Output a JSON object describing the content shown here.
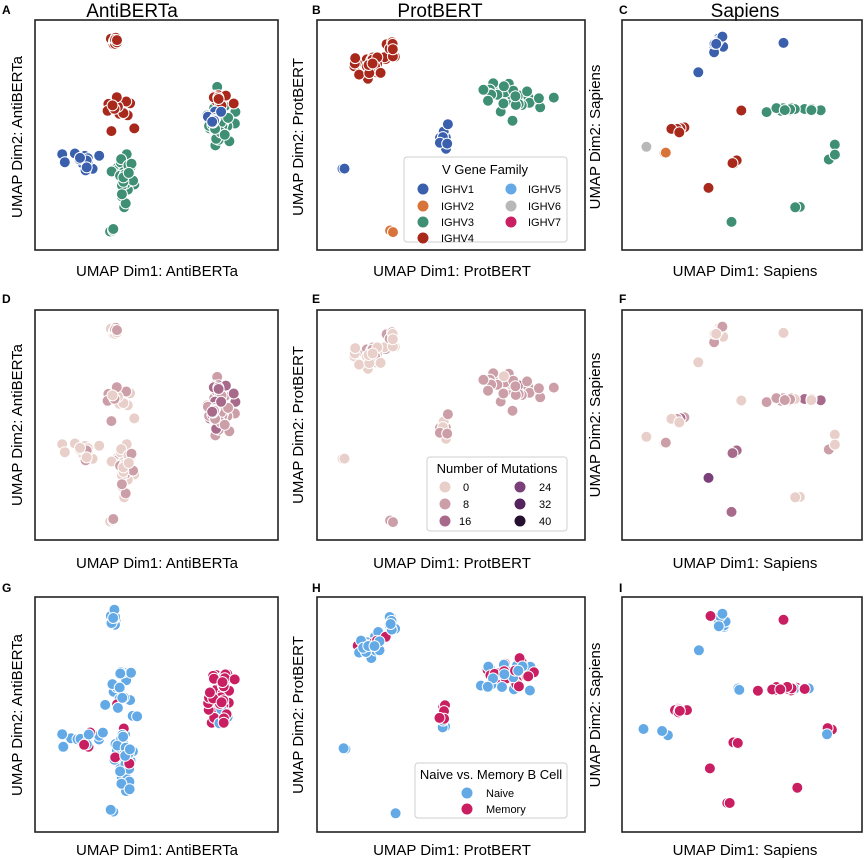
{
  "figure": {
    "columns": [
      "AntiBERTa",
      "ProtBERT",
      "Sapiens"
    ],
    "panel_letters": [
      "A",
      "B",
      "C",
      "D",
      "E",
      "F",
      "G",
      "H",
      "I"
    ]
  },
  "axes": {
    "AntiBERTa": {
      "xlabel": "UMAP Dim1: AntiBERTa",
      "ylabel": "UMAP Dim2: AntiBERTa"
    },
    "ProtBERT": {
      "xlabel": "UMAP Dim1: ProtBERT",
      "ylabel": "UMAP Dim2: ProtBERT"
    },
    "Sapiens": {
      "xlabel": "UMAP Dim1: Sapiens",
      "ylabel": "UMAP Dim2: Sapiens"
    }
  },
  "legends": {
    "vgene": {
      "title": "V Gene Family",
      "entries": [
        {
          "label": "IGHV1",
          "color": "#3a5fad"
        },
        {
          "label": "IGHV2",
          "color": "#d8743a"
        },
        {
          "label": "IGHV3",
          "color": "#3e8f74"
        },
        {
          "label": "IGHV4",
          "color": "#a8291c"
        },
        {
          "label": "IGHV5",
          "color": "#63a9e6"
        },
        {
          "label": "IGHV6",
          "color": "#b8b8b8"
        },
        {
          "label": "IGHV7",
          "color": "#c91e61"
        }
      ]
    },
    "mutations": {
      "title": "Number of Mutations",
      "entries": [
        {
          "label": "0",
          "color": "#e8cfc9"
        },
        {
          "label": "8",
          "color": "#cc9fa8"
        },
        {
          "label": "16",
          "color": "#a76a8b"
        },
        {
          "label": "24",
          "color": "#7b3f7a"
        },
        {
          "label": "32",
          "color": "#55245e"
        },
        {
          "label": "40",
          "color": "#26102f"
        }
      ]
    },
    "celltype": {
      "title": "Naive vs. Memory B Cell",
      "entries": [
        {
          "label": "Naive",
          "color": "#63a9e6"
        },
        {
          "label": "Memory",
          "color": "#c91e61"
        }
      ]
    }
  },
  "chart_data": [
    {
      "type": "scatter",
      "model": "AntiBERTa",
      "xlabel": "UMAP Dim1: AntiBERTa",
      "ylabel": "UMAP Dim2: AntiBERTa",
      "xlim": [
        0,
        10
      ],
      "ylim": [
        0,
        10
      ],
      "clusters": [
        {
          "x": 3.1,
          "y": 9.5,
          "sx": 0.15,
          "sy": 0.3,
          "n": 10,
          "vgene": "IGHV4",
          "mut": 2,
          "cell": "naive"
        },
        {
          "x": 1.7,
          "y": 3.8,
          "sx": 0.9,
          "sy": 0.35,
          "n": 14,
          "vgene": "IGHV1",
          "mut": 1,
          "cell": "naive"
        },
        {
          "x": 3.3,
          "y": 6.0,
          "sx": 0.5,
          "sy": 0.9,
          "n": 18,
          "vgene": "IGHV4",
          "mut": 2,
          "cell": "naive"
        },
        {
          "x": 3.6,
          "y": 3.0,
          "sx": 0.4,
          "sy": 1.2,
          "n": 36,
          "vgene": "IGHV3",
          "mut": 1,
          "cell": "naive"
        },
        {
          "x": 3.0,
          "y": 0.5,
          "sx": 0.1,
          "sy": 0.1,
          "n": 3,
          "vgene": "IGHV3",
          "mut": 0,
          "cell": "naive"
        },
        {
          "x": 7.8,
          "y": 5.5,
          "sx": 0.45,
          "sy": 0.9,
          "n": 42,
          "vgene": "IGHV3",
          "mut": 10,
          "cell": "memory"
        },
        {
          "x": 7.9,
          "y": 6.7,
          "sx": 0.4,
          "sy": 0.3,
          "n": 14,
          "vgene": "IGHV4",
          "mut": 14,
          "cell": "memory"
        },
        {
          "x": 7.6,
          "y": 5.8,
          "sx": 0.3,
          "sy": 0.3,
          "n": 8,
          "vgene": "IGHV1",
          "mut": 12,
          "cell": "memory"
        }
      ]
    },
    {
      "type": "scatter",
      "model": "ProtBERT",
      "xlabel": "UMAP Dim1: ProtBERT",
      "ylabel": "UMAP Dim2: ProtBERT",
      "xlim": [
        0,
        10
      ],
      "ylim": [
        0,
        10
      ],
      "clusters": [
        {
          "x": 1.8,
          "y": 8.3,
          "sx": 0.5,
          "sy": 0.5,
          "n": 28,
          "vgene": "IGHV4",
          "mut": 2,
          "cell": "naive"
        },
        {
          "x": 2.6,
          "y": 9.2,
          "sx": 0.15,
          "sy": 0.35,
          "n": 8,
          "vgene": "IGHV4",
          "mut": 3,
          "cell": "naive"
        },
        {
          "x": 4.7,
          "y": 5.0,
          "sx": 0.2,
          "sy": 0.6,
          "n": 12,
          "vgene": "IGHV1",
          "mut": 6,
          "cell": "mixed"
        },
        {
          "x": 0.7,
          "y": 3.4,
          "sx": 0.1,
          "sy": 0.05,
          "n": 2,
          "vgene": "IGHV1",
          "mut": 0,
          "cell": "naive"
        },
        {
          "x": 7.3,
          "y": 6.9,
          "sx": 1.0,
          "sy": 0.6,
          "n": 36,
          "vgene": "IGHV3",
          "mut": 8,
          "cell": "mixed"
        },
        {
          "x": 2.7,
          "y": 0.4,
          "sx": 0.15,
          "sy": 0.05,
          "n": 2,
          "vgene": "IGHV2",
          "mut": 6,
          "cell": "naive"
        }
      ]
    },
    {
      "type": "scatter",
      "model": "Sapiens",
      "xlabel": "UMAP Dim1: Sapiens",
      "ylabel": "UMAP Dim2: Sapiens",
      "xlim": [
        0,
        10
      ],
      "ylim": [
        0,
        10
      ],
      "clusters": [
        {
          "x": 3.8,
          "y": 9.3,
          "sx": 0.4,
          "sy": 0.3,
          "n": 9,
          "vgene": "IGHV1",
          "mut": 2,
          "cell": "naive"
        },
        {
          "x": 7.3,
          "y": 6.2,
          "sx": 0.9,
          "sy": 0.1,
          "n": 18,
          "vgene": "IGHV3",
          "mut": 10,
          "cell": "memory"
        },
        {
          "x": 2.3,
          "y": 5.2,
          "sx": 0.35,
          "sy": 0.15,
          "n": 6,
          "vgene": "IGHV4",
          "mut": 6,
          "cell": "memory"
        },
        {
          "x": 4.9,
          "y": 6.2,
          "sx": 0.1,
          "sy": 0.1,
          "n": 2,
          "vgene": "IGHV4",
          "mut": 2,
          "cell": "naive"
        },
        {
          "x": 4.7,
          "y": 3.7,
          "sx": 0.15,
          "sy": 0.1,
          "n": 3,
          "vgene": "IGHV4",
          "mut": 14,
          "cell": "memory"
        },
        {
          "x": 3.5,
          "y": 2.5,
          "sx": 0.05,
          "sy": 0.05,
          "n": 1,
          "vgene": "IGHV4",
          "mut": 18,
          "cell": "memory"
        },
        {
          "x": 7.5,
          "y": 1.6,
          "sx": 0.15,
          "sy": 0.05,
          "n": 2,
          "vgene": "IGHV3",
          "mut": 4,
          "cell": "mixed"
        },
        {
          "x": 4.4,
          "y": 0.9,
          "sx": 0.15,
          "sy": 0.05,
          "n": 2,
          "vgene": "IGHV3",
          "mut": 6,
          "cell": "mixed"
        },
        {
          "x": 9.0,
          "y": 4.3,
          "sx": 0.3,
          "sy": 0.3,
          "n": 3,
          "vgene": "IGHV3",
          "mut": 4,
          "cell": "mixed"
        },
        {
          "x": 0.6,
          "y": 4.4,
          "sx": 0.05,
          "sy": 0.05,
          "n": 1,
          "vgene": "IGHV6",
          "mut": 0,
          "cell": "naive"
        },
        {
          "x": 1.5,
          "y": 4.1,
          "sx": 0.3,
          "sy": 0.1,
          "n": 2,
          "vgene": "IGHV2",
          "mut": 1,
          "cell": "naive"
        },
        {
          "x": 3.0,
          "y": 8.0,
          "sx": 0.05,
          "sy": 0.05,
          "n": 1,
          "vgene": "IGHV1",
          "mut": 0,
          "cell": "naive"
        },
        {
          "x": 6.9,
          "y": 9.4,
          "sx": 0.05,
          "sy": 0.05,
          "n": 1,
          "vgene": "IGHV1",
          "mut": 4,
          "cell": "memory"
        }
      ]
    }
  ]
}
